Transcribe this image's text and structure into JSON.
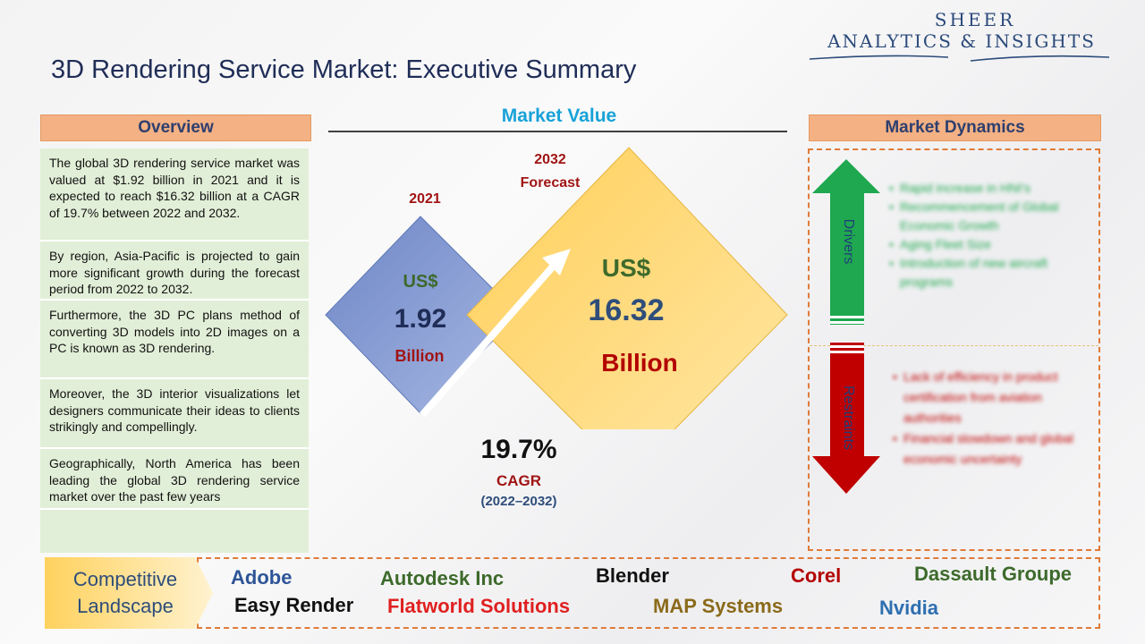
{
  "brand": {
    "line1": "SHEER",
    "line2": "ANALYTICS & INSIGHTS"
  },
  "title": "3D Rendering Service Market: Executive Summary",
  "overview": {
    "heading": "Overview",
    "items": [
      "The global 3D rendering service market was valued at $1.92 billion in 2021 and it is expected to reach $16.32 billion at a CAGR of 19.7% between 2022 and 2032.",
      "By region, Asia-Pacific is projected to gain more significant growth during the forecast period from 2022 to 2032.",
      "Furthermore, the 3D PC plans method of converting 3D models into 2D images on a PC is known as 3D rendering.",
      "Moreover, the 3D interior visualizations let designers communicate their ideas to clients strikingly and compellingly.",
      "Geographically, North America has been leading the global 3D rendering service market over the past few years"
    ]
  },
  "market_value": {
    "heading": "Market Value",
    "y2021": {
      "year": "2021",
      "currency": "US$",
      "value": "1.92",
      "unit": "Billion"
    },
    "y2032": {
      "year": "2032",
      "forecast": "Forecast",
      "currency": "US$",
      "value": "16.32",
      "unit": "Billion"
    },
    "cagr": {
      "value": "19.7%",
      "label": "CAGR",
      "period": "(2022–2032)"
    }
  },
  "dynamics": {
    "heading": "Market Dynamics",
    "drivers_label": "Drivers",
    "restraints_label": "Restraints",
    "drivers": [
      "Rapid increase in HNI's",
      "Recommencement of Global Economic Growth",
      "Aging Fleet Size",
      "Introduction of new aircraft programs"
    ],
    "restraints": [
      "Lack of efficiency in product certification from aviation authorities",
      "Financial slowdown and global economic uncertainty"
    ]
  },
  "competitive": {
    "label_line1": "Competitive",
    "label_line2": "Landscape",
    "companies": [
      {
        "name": "Adobe",
        "color": "#2e5597"
      },
      {
        "name": "Autodesk Inc",
        "color": "#3d6a2b"
      },
      {
        "name": "Blender",
        "color": "#111111"
      },
      {
        "name": "Corel",
        "color": "#b30000"
      },
      {
        "name": "Dassault Groupe",
        "color": "#3d6a2b"
      },
      {
        "name": "Easy Render",
        "color": "#111111"
      },
      {
        "name": "Flatworld Solutions",
        "color": "#e02020"
      },
      {
        "name": "MAP Systems",
        "color": "#8a6a1a"
      },
      {
        "name": "Nvidia",
        "color": "#2e6fb0"
      }
    ]
  },
  "colors": {
    "driver_green": "#1fa84f",
    "restraint_red": "#c00000",
    "diamond_blue": "#7f97d0",
    "diamond_yellow": "#ffd772",
    "accent_orange": "#f4b183"
  }
}
